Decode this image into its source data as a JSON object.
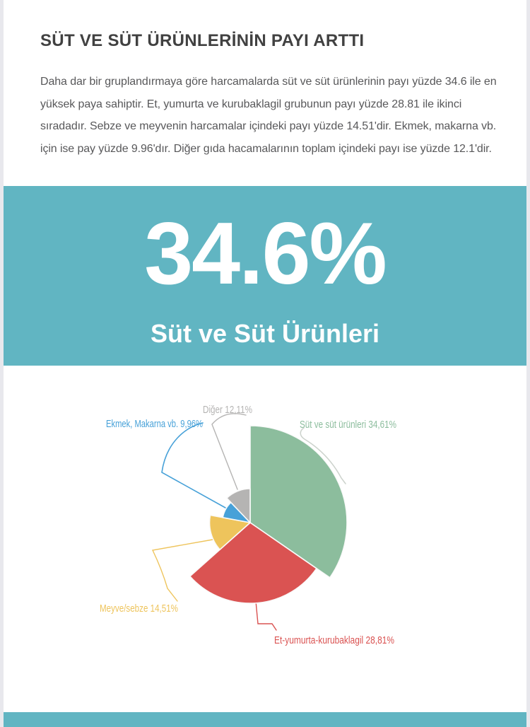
{
  "header": {
    "title": "SÜT VE SÜT ÜRÜNLERİNİN PAYI ARTTI",
    "body_text": "Daha dar bir gruplandırmaya göre harcamalarda süt ve süt ürünlerinin payı yüzde 34.6 ile en yüksek paya sahiptir. Et, yumurta ve kurubaklagil grubunun payı yüzde 28.81 ile ikinci sıradadır. Sebze ve meyvenin harcamalar içindeki payı yüzde 14.51'dir. Ekmek, makarna vb. için ise pay yüzde 9.96'dır. Diğer gıda hacamalarının toplam içindeki payı ise yüzde 12.1'dir."
  },
  "highlight": {
    "value": "34.6%",
    "label": "Süt ve Süt Ürünleri"
  },
  "colors": {
    "accent_teal": "#61b5c2",
    "page_edge": "#e8e8ed",
    "title_text": "#414141",
    "body_text": "#58585a"
  },
  "chart_data": {
    "type": "pie",
    "variant": "rose",
    "layout": "starts at 12 o'clock, clockwise; slice radius proportional to value; colored leader lines to outside labels",
    "slices": [
      {
        "key": "sut",
        "name": "Süt ve süt ürünleri",
        "value": 34.61,
        "label": "Süt ve süt ürünleri 34,61%",
        "color": "#8cbd9d"
      },
      {
        "key": "et",
        "name": "Et-yumurta-kurubaklagil",
        "value": 28.81,
        "label": "Et-yumurta-kurubaklagil 28,81%",
        "color": "#da5352"
      },
      {
        "key": "meyve",
        "name": "Meyve/sebze",
        "value": 14.51,
        "label": "Meyve/sebze 14,51%",
        "color": "#eec45c"
      },
      {
        "key": "ekmek",
        "name": "Ekmek, Makarna vb.",
        "value": 9.96,
        "label": "Ekmek, Makarna vb. 9,96%",
        "color": "#47a1d8"
      },
      {
        "key": "diger",
        "name": "Diğer",
        "value": 12.11,
        "label": "Diğer 12,11%",
        "color": "#b5b4b3"
      }
    ]
  }
}
